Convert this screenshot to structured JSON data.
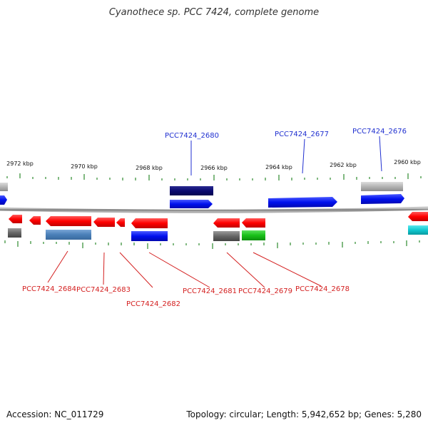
{
  "title": "Cyanothece sp. PCC 7424, complete genome",
  "footer": {
    "accession": "Accession: NC_011729",
    "summary": "Topology: circular; Length: 5,942,652 bp; Genes: 5,280"
  },
  "colors": {
    "forward_label": "#1f2fd0",
    "reverse_label": "#d42020",
    "tick": "#2d8a2d",
    "backbone": "#8a8a8a"
  },
  "ticks": [
    {
      "label": "2972 kbp"
    },
    {
      "label": "2970 kbp"
    },
    {
      "label": "2968 kbp"
    },
    {
      "label": "2966 kbp"
    },
    {
      "label": "2964 kbp"
    },
    {
      "label": "2962 kbp"
    },
    {
      "label": "2960 kbp"
    }
  ],
  "genes_forward": [
    {
      "name": "PCC7424_2680"
    },
    {
      "name": "PCC7424_2677"
    },
    {
      "name": "PCC7424_2676"
    }
  ],
  "genes_reverse": [
    {
      "name": "PCC7424_2684"
    },
    {
      "name": "PCC7424_2683"
    },
    {
      "name": "PCC7424_2682"
    },
    {
      "name": "PCC7424_2681"
    },
    {
      "name": "PCC7424_2679"
    },
    {
      "name": "PCC7424_2678"
    }
  ]
}
